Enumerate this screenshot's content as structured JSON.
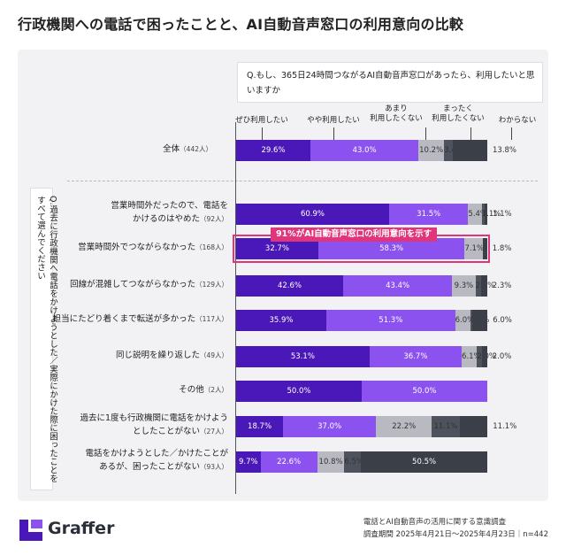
{
  "title": "行政機関への電話で困ったことと、AI自動音声窓口の利用意向の比較",
  "question_top": "Q.もし、365日24時間つながるAI自動音声窓口があったら、利用したいと思いますか",
  "question_side": "Q.過去に行政機関へ電話をかけようとした／実際にかけた際に困ったことをすべて選んでください",
  "highlight_label": "91%がAI自動音声窓口の利用意向を示す",
  "legend": [
    "ぜひ利用したい",
    "やや利用したい",
    "あまり\n利用したくない",
    "まったく\n利用したくない",
    "わからない"
  ],
  "colors": [
    "#4a17b8",
    "#8b52f0",
    "#b9b9c2",
    "#4d525c",
    "#3a3f48"
  ],
  "footer": {
    "brand": "Graffer",
    "survey": "電話とAI自動音声の活用に関する意識調査",
    "period": "調査期間 2025年4月21日〜2025年4月23日｜n=442"
  },
  "chart_data": {
    "type": "bar",
    "stacked": true,
    "orientation": "horizontal",
    "xlim": [
      0,
      100
    ],
    "categories": [
      {
        "label": "全体",
        "n": "（442人）"
      },
      {
        "label": "営業時間外だったので、電話を\nかけるのはやめた",
        "n": "（92人）"
      },
      {
        "label": "営業時間外でつながらなかった",
        "n": "（168人）"
      },
      {
        "label": "回線が混雑してつながらなかった",
        "n": "（129人）"
      },
      {
        "label": "担当にたどり着くまで転送が多かった",
        "n": "（117人）"
      },
      {
        "label": "同じ説明を繰り返した",
        "n": "（49人）"
      },
      {
        "label": "その他",
        "n": "（2人）"
      },
      {
        "label": "過去に1度も行政機関に電話をかけよう\nとしたことがない",
        "n": "（27人）"
      },
      {
        "label": "電話をかけようとした／かけたことが\nあるが、困ったことがない",
        "n": "（93人）"
      }
    ],
    "series": [
      {
        "name": "ぜひ利用したい",
        "values": [
          29.6,
          60.9,
          32.7,
          42.6,
          35.9,
          53.1,
          50.0,
          18.7,
          9.7
        ]
      },
      {
        "name": "やや利用したい",
        "values": [
          43.0,
          31.5,
          58.3,
          43.4,
          51.3,
          36.7,
          50.0,
          37.0,
          22.6
        ]
      },
      {
        "name": "あまり利用したくない",
        "values": [
          10.2,
          5.4,
          7.1,
          9.3,
          6.0,
          6.1,
          0,
          22.2,
          10.8
        ]
      },
      {
        "name": "まったく利用したくない",
        "values": [
          3.4,
          1.1,
          0,
          2.3,
          0.9,
          2.0,
          0,
          11.1,
          6.5
        ]
      },
      {
        "name": "わからない",
        "values": [
          13.8,
          1.1,
          1.8,
          2.3,
          6.0,
          2.0,
          0,
          11.1,
          50.5
        ]
      }
    ],
    "labels": [
      [
        "29.6%",
        "43.0%",
        "10.2%",
        "3.4%",
        "13.8%"
      ],
      [
        "60.9%",
        "31.5%",
        "5.4%",
        "1.1%",
        "1.1%"
      ],
      [
        "32.7%",
        "58.3%",
        "7.1%",
        "",
        "1.8%"
      ],
      [
        "42.6%",
        "43.4%",
        "9.3%",
        "2.3%",
        "2.3%"
      ],
      [
        "35.9%",
        "51.3%",
        "6.0%",
        "0.9%",
        "6.0%"
      ],
      [
        "53.1%",
        "36.7%",
        "6.1%",
        "2.0%",
        "2.0%"
      ],
      [
        "50.0%",
        "50.0%",
        "",
        "",
        ""
      ],
      [
        "18.7%",
        "37.0%",
        "22.2%",
        "11.1%",
        "11.1%"
      ],
      [
        "9.7%",
        "22.6%",
        "10.8%",
        "6.5%",
        "50.5%"
      ]
    ]
  }
}
